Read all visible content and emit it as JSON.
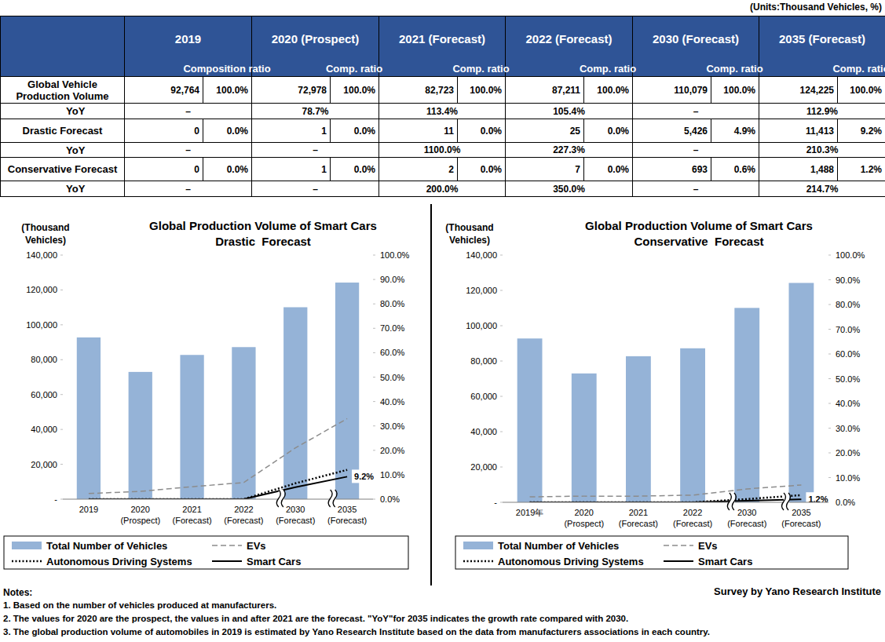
{
  "units": "(Units:Thousand Vehicles, %)",
  "table": {
    "columns": [
      {
        "title": "2019",
        "sub": "Composition ratio"
      },
      {
        "title": "2020 (Prospect)",
        "sub": "Comp. ratio"
      },
      {
        "title": "2021 (Forecast)",
        "sub": "Comp. ratio"
      },
      {
        "title": "2022 (Forecast)",
        "sub": "Comp. ratio"
      },
      {
        "title": "2030 (Forecast)",
        "sub": "Comp. ratio"
      },
      {
        "title": "2035 (Forecast)",
        "sub": "Comp. ratio"
      }
    ],
    "rows": [
      {
        "label": "Global Vehicle Production Volume",
        "cells": [
          [
            "92,764",
            "100.0%"
          ],
          [
            "72,978",
            "100.0%"
          ],
          [
            "82,723",
            "100.0%"
          ],
          [
            "87,211",
            "100.0%"
          ],
          [
            "110,079",
            "100.0%"
          ],
          [
            "124,225",
            "100.0%"
          ]
        ]
      },
      {
        "label": "YoY",
        "cells": [
          "–",
          "78.7%",
          "113.4%",
          "105.4%",
          "–",
          "112.9%"
        ]
      },
      {
        "label": "Drastic Forecast",
        "cells": [
          [
            "0",
            "0.0%"
          ],
          [
            "1",
            "0.0%"
          ],
          [
            "11",
            "0.0%"
          ],
          [
            "25",
            "0.0%"
          ],
          [
            "5,426",
            "4.9%"
          ],
          [
            "11,413",
            "9.2%"
          ]
        ]
      },
      {
        "label": "YoY",
        "cells": [
          "–",
          "–",
          "1100.0%",
          "227.3%",
          "–",
          "210.3%"
        ]
      },
      {
        "label": "Conservative Forecast",
        "cells": [
          [
            "0",
            "0.0%"
          ],
          [
            "1",
            "0.0%"
          ],
          [
            "2",
            "0.0%"
          ],
          [
            "7",
            "0.0%"
          ],
          [
            "693",
            "0.6%"
          ],
          [
            "1,488",
            "1.2%"
          ]
        ]
      },
      {
        "label": "YoY",
        "cells": [
          "–",
          "–",
          "200.0%",
          "350.0%",
          "–",
          "214.7%"
        ]
      }
    ]
  },
  "chart_data": [
    {
      "type": "bar",
      "title": "Global Production Volume of Smart Cars",
      "subtitle": "Drastic  Forecast",
      "y_label": "(Thousand Vehicles)",
      "categories": [
        "2019",
        "2020 (Prospect)",
        "2021 (Forecast)",
        "2022 (Forecast)",
        "2030 (Forecast)",
        "2035 (Forecast)"
      ],
      "ylim": [
        0,
        140000
      ],
      "yticks": [
        {
          "value": 0,
          "label": "-"
        },
        {
          "value": 20000,
          "label": "20,000"
        },
        {
          "value": 40000,
          "label": "40,000"
        },
        {
          "value": 60000,
          "label": "60,000"
        },
        {
          "value": 80000,
          "label": "80,000"
        },
        {
          "value": 100000,
          "label": "100,000"
        },
        {
          "value": 120000,
          "label": "120,000"
        },
        {
          "value": 140000,
          "label": "140,000"
        }
      ],
      "y2lim": [
        0,
        100
      ],
      "y2ticks": [
        {
          "value": 0,
          "label": "0.0%"
        },
        {
          "value": 10,
          "label": "10.0%"
        },
        {
          "value": 20,
          "label": "20.0%"
        },
        {
          "value": 30,
          "label": "30.0%"
        },
        {
          "value": 40,
          "label": "40.0%"
        },
        {
          "value": 50,
          "label": "50.0%"
        },
        {
          "value": 60,
          "label": "60.0%"
        },
        {
          "value": 70,
          "label": "70.0%"
        },
        {
          "value": 80,
          "label": "80.0%"
        },
        {
          "value": 90,
          "label": "90.0%"
        },
        {
          "value": 100,
          "label": "100.0%"
        }
      ],
      "grid": false,
      "legend": "bottom",
      "series": [
        {
          "name": "Total Number of Vehicles",
          "type": "bar",
          "color": "#95b3d7",
          "values": [
            92764,
            72978,
            82723,
            87211,
            110079,
            124225
          ]
        },
        {
          "name": "EVs",
          "type": "line",
          "line_style": "dashed",
          "color": "#8c8c8c",
          "axis": "y2",
          "values": [
            2.3,
            3.2,
            5.1,
            6.8,
            21,
            33
          ]
        },
        {
          "name": "Autonomous Driving Systems",
          "type": "line",
          "line_style": "dotted",
          "color": "#000000",
          "axis": "y2",
          "values": [
            0,
            0,
            0,
            0,
            6.5,
            12
          ]
        },
        {
          "name": "Smart Cars",
          "type": "line",
          "line_style": "solid",
          "color": "#000000",
          "axis": "y2",
          "values": [
            0,
            0,
            0,
            0,
            4.9,
            9.2
          ],
          "value_labels": [
            null,
            null,
            null,
            null,
            null,
            "9.2%"
          ]
        }
      ]
    },
    {
      "type": "bar",
      "title": "Global Production Volume of Smart Cars",
      "subtitle": "Conservative  Forecast",
      "y_label": "(Thousand Vehicles)",
      "categories": [
        "2019年",
        "2020 (Prospect)",
        "2021 (Forecast)",
        "2022 (Forecast)",
        "2030 (Forecast)",
        "2035 (Forecast)"
      ],
      "ylim": [
        0,
        140000
      ],
      "yticks": [
        {
          "value": 0,
          "label": "-"
        },
        {
          "value": 20000,
          "label": "20,000"
        },
        {
          "value": 40000,
          "label": "40,000"
        },
        {
          "value": 60000,
          "label": "60,000"
        },
        {
          "value": 80000,
          "label": "80,000"
        },
        {
          "value": 100000,
          "label": "100,000"
        },
        {
          "value": 120000,
          "label": "120,000"
        },
        {
          "value": 140000,
          "label": "140,000"
        }
      ],
      "y2lim": [
        0,
        100
      ],
      "y2ticks": [
        {
          "value": 0,
          "label": "0.0%"
        },
        {
          "value": 10,
          "label": "10.0%"
        },
        {
          "value": 20,
          "label": "20.0%"
        },
        {
          "value": 30,
          "label": "30.0%"
        },
        {
          "value": 40,
          "label": "40.0%"
        },
        {
          "value": 50,
          "label": "50.0%"
        },
        {
          "value": 60,
          "label": "60.0%"
        },
        {
          "value": 70,
          "label": "70.0%"
        },
        {
          "value": 80,
          "label": "80.0%"
        },
        {
          "value": 90,
          "label": "90.0%"
        },
        {
          "value": 100,
          "label": "100.0%"
        }
      ],
      "grid": false,
      "legend": "bottom",
      "series": [
        {
          "name": "Total Number of Vehicles",
          "type": "bar",
          "color": "#95b3d7",
          "values": [
            92764,
            72978,
            82723,
            87211,
            110079,
            124225
          ]
        },
        {
          "name": "EVs",
          "type": "line",
          "line_style": "dashed",
          "color": "#8c8c8c",
          "axis": "y2",
          "values": [
            2.2,
            2.5,
            2.5,
            2.9,
            5.4,
            7
          ]
        },
        {
          "name": "Autonomous Driving Systems",
          "type": "line",
          "line_style": "dotted",
          "color": "#000000",
          "axis": "y2",
          "values": [
            0,
            0,
            0,
            0,
            1.3,
            2.9
          ]
        },
        {
          "name": "Smart Cars",
          "type": "line",
          "line_style": "solid",
          "color": "#000000",
          "axis": "y2",
          "values": [
            0,
            0,
            0,
            0,
            0.6,
            1.2
          ],
          "value_labels": [
            null,
            null,
            null,
            null,
            null,
            "1.2%"
          ]
        }
      ]
    }
  ],
  "notes": {
    "heading": "Notes:",
    "items": [
      "1. Based on the number of vehicles produced at manufacturers.",
      "2. The values for 2020 are the prospect, the values in and after 2021 are the forecast. \"YoY\"for 2035 indicates the growth rate compared with 2030.",
      "3. The global production volume of automobiles in 2019 is estimated by Yano Research Institute based on the data from manufacturers associations in each country."
    ]
  },
  "source": "Survey by Yano Research Institute"
}
